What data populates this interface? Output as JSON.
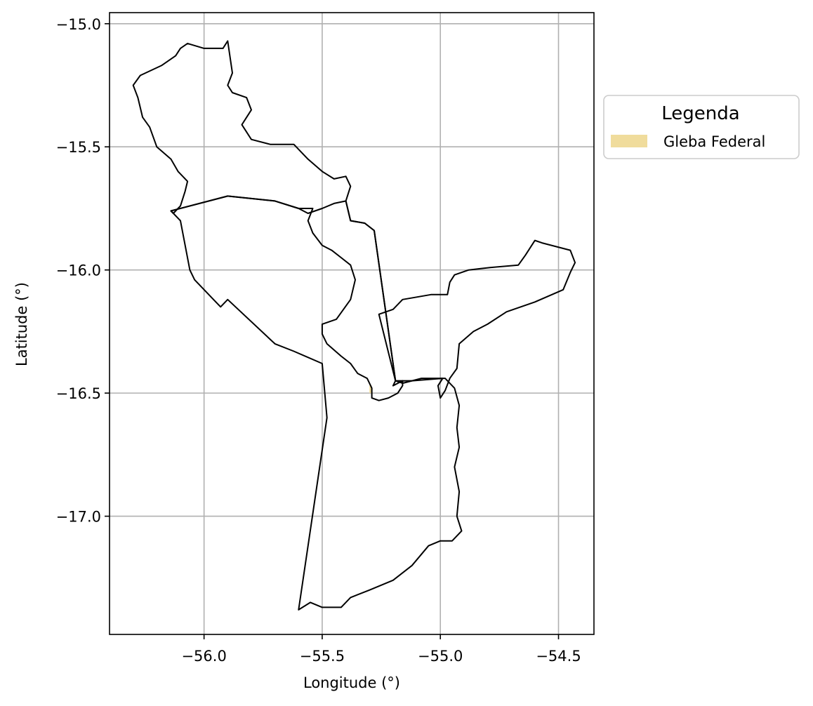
{
  "axes": {
    "xlabel": "Longitude (°)",
    "ylabel": "Latitude (°)",
    "xlim": [
      -56.4,
      -54.35
    ],
    "ylim": [
      -17.48,
      -14.955
    ],
    "xticks": [
      {
        "value": -56.0,
        "label": "−56.0"
      },
      {
        "value": -55.5,
        "label": "−55.5"
      },
      {
        "value": -55.0,
        "label": "−55.0"
      },
      {
        "value": -54.5,
        "label": "−54.5"
      }
    ],
    "yticks": [
      {
        "value": -15.0,
        "label": "−15.0"
      },
      {
        "value": -15.5,
        "label": "−15.5"
      },
      {
        "value": -16.0,
        "label": "−16.0"
      },
      {
        "value": -16.5,
        "label": "−16.5"
      },
      {
        "value": -17.0,
        "label": "−17.0"
      }
    ],
    "grid": true
  },
  "legend": {
    "title": "Legenda",
    "placement": "right, outside plot",
    "items": [
      {
        "label": "Gleba Federal",
        "color": "#f0dc9c"
      }
    ]
  },
  "colors": {
    "boundary": "#000000",
    "grid": "#b0b0b0",
    "gleba_federal": "#f0dc9c"
  },
  "map_data": {
    "boundaries": [
      {
        "name": "northwest-region",
        "coords": [
          [
            -56.13,
            -15.77
          ],
          [
            -56.1,
            -15.74
          ],
          [
            -56.08,
            -15.68
          ],
          [
            -56.07,
            -15.64
          ],
          [
            -56.11,
            -15.6
          ],
          [
            -56.14,
            -15.55
          ],
          [
            -56.2,
            -15.5
          ],
          [
            -56.23,
            -15.42
          ],
          [
            -56.26,
            -15.38
          ],
          [
            -56.28,
            -15.3
          ],
          [
            -56.3,
            -15.25
          ],
          [
            -56.27,
            -15.21
          ],
          [
            -56.18,
            -15.17
          ],
          [
            -56.12,
            -15.13
          ],
          [
            -56.1,
            -15.1
          ],
          [
            -56.07,
            -15.08
          ],
          [
            -56.0,
            -15.1
          ],
          [
            -55.92,
            -15.1
          ],
          [
            -55.9,
            -15.07
          ],
          [
            -55.88,
            -15.2
          ],
          [
            -55.9,
            -15.25
          ],
          [
            -55.88,
            -15.28
          ],
          [
            -55.82,
            -15.3
          ],
          [
            -55.8,
            -15.35
          ],
          [
            -55.84,
            -15.41
          ],
          [
            -55.8,
            -15.47
          ],
          [
            -55.72,
            -15.49
          ],
          [
            -55.62,
            -15.49
          ],
          [
            -55.56,
            -15.55
          ],
          [
            -55.5,
            -15.6
          ],
          [
            -55.45,
            -15.63
          ],
          [
            -55.4,
            -15.62
          ],
          [
            -55.38,
            -15.66
          ],
          [
            -55.4,
            -15.72
          ],
          [
            -55.38,
            -15.8
          ],
          [
            -55.32,
            -15.81
          ],
          [
            -55.28,
            -15.84
          ],
          [
            -55.19,
            -16.45
          ],
          [
            -55.2,
            -16.47
          ],
          [
            -55.18,
            -16.46
          ],
          [
            -55.16,
            -16.45
          ],
          [
            -55.16,
            -16.47
          ],
          [
            -55.18,
            -16.5
          ],
          [
            -55.22,
            -16.52
          ],
          [
            -55.26,
            -16.53
          ],
          [
            -55.29,
            -16.52
          ],
          [
            -55.29,
            -16.48
          ],
          [
            -55.31,
            -16.44
          ],
          [
            -55.35,
            -16.42
          ],
          [
            -55.38,
            -16.38
          ],
          [
            -55.42,
            -16.35
          ],
          [
            -55.48,
            -16.3
          ],
          [
            -55.5,
            -16.26
          ],
          [
            -55.5,
            -16.22
          ],
          [
            -55.44,
            -16.2
          ],
          [
            -55.38,
            -16.12
          ],
          [
            -55.36,
            -16.04
          ],
          [
            -55.38,
            -15.98
          ],
          [
            -55.42,
            -15.95
          ],
          [
            -55.46,
            -15.92
          ],
          [
            -55.5,
            -15.9
          ],
          [
            -55.54,
            -15.85
          ],
          [
            -55.56,
            -15.8
          ],
          [
            -55.54,
            -15.75
          ],
          [
            -55.6,
            -15.75
          ],
          [
            -55.7,
            -15.72
          ],
          [
            -55.9,
            -15.7
          ],
          [
            -56.14,
            -15.76
          ],
          [
            -56.13,
            -15.77
          ]
        ]
      },
      {
        "name": "southwest-region",
        "coords": [
          [
            -56.14,
            -15.76
          ],
          [
            -56.1,
            -15.8
          ],
          [
            -56.08,
            -15.9
          ],
          [
            -56.06,
            -16.0
          ],
          [
            -56.04,
            -16.04
          ],
          [
            -55.96,
            -16.12
          ],
          [
            -55.93,
            -16.15
          ],
          [
            -55.9,
            -16.12
          ],
          [
            -55.7,
            -16.3
          ],
          [
            -55.62,
            -16.33
          ],
          [
            -55.5,
            -16.38
          ],
          [
            -55.48,
            -16.6
          ],
          [
            -55.6,
            -17.38
          ],
          [
            -55.55,
            -17.35
          ],
          [
            -55.5,
            -17.37
          ],
          [
            -55.42,
            -17.37
          ],
          [
            -55.38,
            -17.33
          ],
          [
            -55.3,
            -17.3
          ],
          [
            -55.2,
            -17.26
          ],
          [
            -55.12,
            -17.2
          ],
          [
            -55.05,
            -17.12
          ],
          [
            -55.0,
            -17.1
          ],
          [
            -54.95,
            -17.1
          ],
          [
            -54.91,
            -17.06
          ],
          [
            -54.93,
            -17.0
          ],
          [
            -54.92,
            -16.9
          ],
          [
            -54.94,
            -16.8
          ],
          [
            -54.92,
            -16.72
          ],
          [
            -54.93,
            -16.64
          ],
          [
            -54.92,
            -16.55
          ],
          [
            -54.94,
            -16.48
          ],
          [
            -54.98,
            -16.44
          ],
          [
            -55.08,
            -16.44
          ],
          [
            -55.12,
            -16.45
          ],
          [
            -55.16,
            -16.45
          ],
          [
            -55.19,
            -16.45
          ],
          [
            -55.28,
            -15.84
          ],
          [
            -55.32,
            -15.81
          ],
          [
            -55.38,
            -15.8
          ],
          [
            -55.4,
            -15.72
          ],
          [
            -55.45,
            -15.73
          ],
          [
            -55.5,
            -15.75
          ],
          [
            -55.56,
            -15.77
          ],
          [
            -55.6,
            -15.75
          ],
          [
            -55.7,
            -15.72
          ],
          [
            -55.9,
            -15.7
          ],
          [
            -56.14,
            -15.76
          ]
        ]
      },
      {
        "name": "east-region",
        "coords": [
          [
            -55.26,
            -16.18
          ],
          [
            -55.2,
            -16.16
          ],
          [
            -55.16,
            -16.12
          ],
          [
            -55.1,
            -16.11
          ],
          [
            -55.04,
            -16.1
          ],
          [
            -54.97,
            -16.1
          ],
          [
            -54.96,
            -16.05
          ],
          [
            -54.94,
            -16.02
          ],
          [
            -54.88,
            -16.0
          ],
          [
            -54.79,
            -15.99
          ],
          [
            -54.67,
            -15.98
          ],
          [
            -54.64,
            -15.94
          ],
          [
            -54.6,
            -15.88
          ],
          [
            -54.57,
            -15.89
          ],
          [
            -54.45,
            -15.92
          ],
          [
            -54.43,
            -15.97
          ],
          [
            -54.45,
            -16.01
          ],
          [
            -54.48,
            -16.08
          ],
          [
            -54.6,
            -16.13
          ],
          [
            -54.72,
            -16.17
          ],
          [
            -54.8,
            -16.22
          ],
          [
            -54.86,
            -16.25
          ],
          [
            -54.92,
            -16.3
          ],
          [
            -54.93,
            -16.4
          ],
          [
            -54.96,
            -16.44
          ],
          [
            -54.98,
            -16.49
          ],
          [
            -55.0,
            -16.52
          ],
          [
            -55.01,
            -16.47
          ],
          [
            -54.99,
            -16.44
          ],
          [
            -55.12,
            -16.45
          ],
          [
            -55.16,
            -16.46
          ],
          [
            -55.19,
            -16.45
          ],
          [
            -55.26,
            -16.18
          ]
        ]
      }
    ],
    "feature_patch": {
      "label": "Gleba Federal",
      "coords": [
        [
          -55.3,
          -16.47
        ],
        [
          -55.29,
          -16.47
        ],
        [
          -55.29,
          -16.5
        ],
        [
          -55.3,
          -16.5
        ]
      ]
    }
  }
}
